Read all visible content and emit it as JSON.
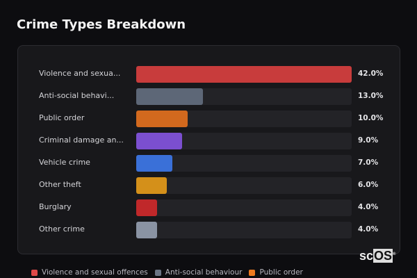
{
  "title": "Crime Types Breakdown",
  "chart_data": {
    "type": "bar",
    "orientation": "horizontal",
    "title": "Crime Types Breakdown",
    "categories": [
      "Violence and sexua...",
      "Anti-social behavi...",
      "Public order",
      "Criminal damage an...",
      "Vehicle crime",
      "Other theft",
      "Burglary",
      "Other crime"
    ],
    "values": [
      42.0,
      13.0,
      10.0,
      9.0,
      7.0,
      6.0,
      4.0,
      4.0
    ],
    "value_labels": [
      "42.0%",
      "13.0%",
      "10.0%",
      "9.0%",
      "7.0%",
      "6.0%",
      "4.0%",
      "4.0%"
    ],
    "colors": [
      "#c83c3c",
      "#5d6777",
      "#d2691e",
      "#7b4fd0",
      "#3a70d8",
      "#d4901a",
      "#c0282a",
      "#8a93a3"
    ],
    "xlim": [
      0,
      42
    ],
    "legend": [
      {
        "label": "Violence and sexual offences",
        "color": "#e04848"
      },
      {
        "label": "Anti-social behaviour",
        "color": "#6b7585"
      },
      {
        "label": "Public order",
        "color": "#f07a1e"
      }
    ],
    "legend_position": "bottom"
  },
  "logo": {
    "text1": "sc",
    "text2": "OS",
    "mark": "®"
  }
}
